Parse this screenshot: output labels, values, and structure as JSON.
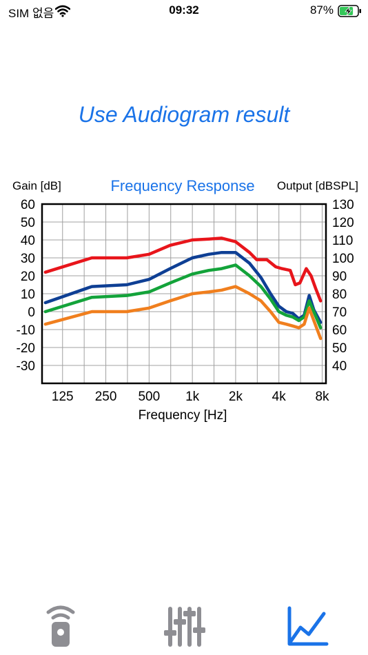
{
  "status_bar": {
    "carrier": "SIM 없음",
    "time": "09:32",
    "battery_percent": "87%",
    "battery_level": 0.87
  },
  "page": {
    "title": "Use Audiogram result"
  },
  "chart_data": {
    "type": "line",
    "title": "Frequency Response",
    "ylabel": "Gain [dB]",
    "y2label": "Output [dBSPL]",
    "xlabel": "Frequency [Hz]",
    "x_scale": "log",
    "x_ticks": [
      125,
      250,
      500,
      1000,
      2000,
      4000,
      8000
    ],
    "x_tick_labels": [
      "125",
      "250",
      "500",
      "1k",
      "2k",
      "4k",
      "8k"
    ],
    "ylim": [
      -40,
      60
    ],
    "y_tick_labels": [
      "60",
      "50",
      "40",
      "30",
      "20",
      "10",
      "0",
      "-10",
      "-20",
      "-30"
    ],
    "y2_tick_labels": [
      "130",
      "120",
      "110",
      "100",
      "90",
      "80",
      "70",
      "60",
      "50",
      "40"
    ],
    "grid": true,
    "series": [
      {
        "color": "#e8151b",
        "x": [
          95,
          200,
          350,
          500,
          700,
          1000,
          1300,
          1600,
          2000,
          2500,
          2800,
          3300,
          3800,
          4200,
          4800,
          5200,
          5600,
          6200,
          6700,
          7200,
          7800
        ],
        "values": [
          22,
          30,
          30,
          32,
          37,
          40,
          40.5,
          41,
          39,
          33,
          29,
          29,
          25,
          24,
          23,
          15,
          16,
          24,
          20,
          13,
          6
        ]
      },
      {
        "color": "#0e3f94",
        "x": [
          95,
          200,
          350,
          500,
          700,
          1000,
          1300,
          1600,
          2000,
          2500,
          3000,
          3500,
          4000,
          4500,
          5000,
          5500,
          6000,
          6500,
          7000,
          7800
        ],
        "values": [
          5,
          14,
          15,
          18,
          24,
          30,
          32,
          33,
          33,
          27,
          19,
          10,
          3,
          0,
          -1,
          -4,
          -2,
          9,
          1,
          -6
        ]
      },
      {
        "color": "#13a33a",
        "x": [
          95,
          200,
          350,
          500,
          700,
          1000,
          1300,
          1600,
          2000,
          2500,
          3000,
          3500,
          4000,
          4500,
          5000,
          5500,
          6000,
          6500,
          7000,
          7800
        ],
        "values": [
          0,
          8,
          9,
          11,
          16,
          21,
          23,
          24,
          26,
          20,
          14,
          7,
          0,
          -2,
          -3,
          -5,
          -3,
          6,
          0,
          -9
        ]
      },
      {
        "color": "#f07f1e",
        "x": [
          95,
          200,
          350,
          500,
          700,
          1000,
          1300,
          1600,
          2000,
          2500,
          3000,
          3500,
          4000,
          4500,
          5000,
          5500,
          6000,
          6500,
          7000,
          7800
        ],
        "values": [
          -7,
          0,
          0,
          2,
          6,
          10,
          11,
          12,
          14,
          10,
          6,
          0,
          -6,
          -7,
          -8,
          -9,
          -7,
          2,
          -5,
          -15
        ]
      }
    ]
  },
  "tabbar": {
    "tabs": [
      {
        "icon": "remote-control-icon",
        "active": false
      },
      {
        "icon": "equalizer-sliders-icon",
        "active": false
      },
      {
        "icon": "line-chart-icon",
        "active": true
      }
    ],
    "active_color": "#1a73e8",
    "inactive_color": "#8e8e93"
  }
}
